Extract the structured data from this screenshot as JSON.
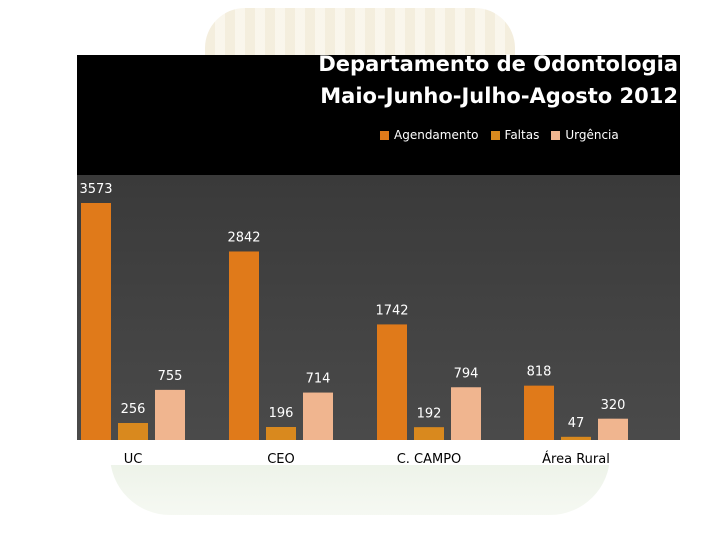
{
  "chart_data": {
    "type": "bar",
    "title_lines": [
      "Departamento de Odontologia",
      "Maio-Junho-Julho-Agosto 2012"
    ],
    "categories": [
      "UC",
      "CEO",
      "C. CAMPO",
      "Área Rural"
    ],
    "series": [
      {
        "name": "Agendamento",
        "values": [
          3573,
          2842,
          1742,
          818
        ],
        "color": "#e07a1a"
      },
      {
        "name": "Faltas",
        "values": [
          256,
          196,
          192,
          47
        ],
        "color": "#d9891e"
      },
      {
        "name": "Urgência",
        "values": [
          755,
          714,
          794,
          320
        ],
        "color": "#f0b58f"
      }
    ],
    "ylim": [
      0,
      3700
    ],
    "legend_position": "top-right",
    "grid": false
  }
}
